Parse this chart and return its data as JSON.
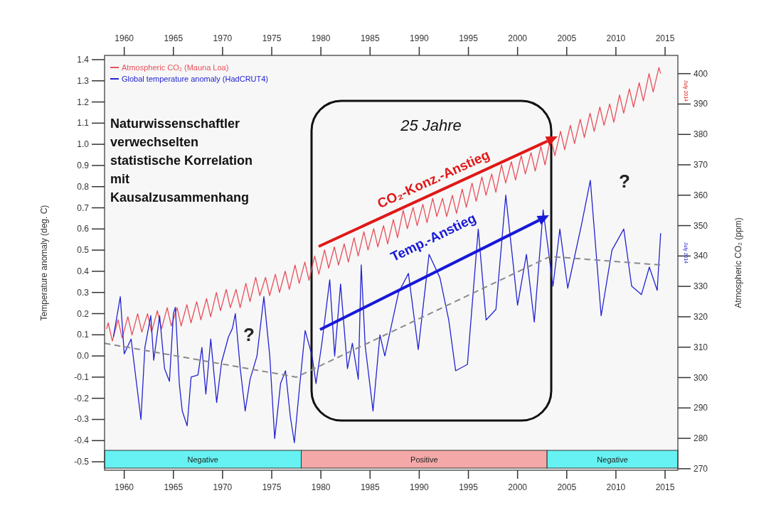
{
  "chart_data": {
    "type": "line",
    "xlim": [
      1958,
      2016.3
    ],
    "xticks": [
      1960,
      1965,
      1970,
      1975,
      1980,
      1985,
      1990,
      1995,
      2000,
      2005,
      2010,
      2015
    ],
    "x2lim": [
      1958,
      2016.3
    ],
    "x2ticks": [
      1960,
      1965,
      1970,
      1975,
      1980,
      1985,
      1990,
      1995,
      2000,
      2005,
      2010,
      2015
    ],
    "ylim": [
      -0.54,
      1.42
    ],
    "yticks": [
      -0.5,
      -0.4,
      -0.3,
      -0.2,
      -0.1,
      {
        "value": 0,
        "label": "0.0"
      },
      0.1,
      0.2,
      0.3,
      0.4,
      0.5,
      0.6,
      0.7,
      0.8,
      0.9,
      {
        "value": 1,
        "label": "1.0"
      },
      1.1,
      1.2,
      1.3,
      1.4
    ],
    "y2lim": [
      269.5,
      406
    ],
    "y2ticks": [
      270,
      280,
      290,
      300,
      310,
      320,
      330,
      340,
      350,
      360,
      370,
      380,
      390,
      400
    ],
    "ylabel": "Temperature anomaly (deg. C)",
    "y2label": "Atmospheric CO₂ (ppm)",
    "legend": "top left",
    "grid": false,
    "marker": "none",
    "series": [
      {
        "name": "Atmospheric CO₂ (Mauna Loa)",
        "color": "#e8505a",
        "axis": "y2",
        "x": [
          1958.2,
          1958.37,
          1958.79,
          1959.37,
          1959.79,
          1960.37,
          1960.79,
          1961.37,
          1961.79,
          1962.37,
          1962.79,
          1963.37,
          1963.79,
          1964.37,
          1964.79,
          1965.37,
          1965.79,
          1966.37,
          1966.79,
          1967.37,
          1967.79,
          1968.37,
          1968.79,
          1969.37,
          1969.79,
          1970.37,
          1970.79,
          1971.37,
          1971.79,
          1972.37,
          1972.79,
          1973.37,
          1973.79,
          1974.37,
          1974.79,
          1975.37,
          1975.79,
          1976.37,
          1976.79,
          1977.37,
          1977.79,
          1978.37,
          1978.79,
          1979.37,
          1979.79,
          1980.37,
          1980.79,
          1981.37,
          1981.79,
          1982.37,
          1982.79,
          1983.37,
          1983.79,
          1984.37,
          1984.79,
          1985.37,
          1985.79,
          1986.37,
          1986.79,
          1987.37,
          1987.79,
          1988.37,
          1988.79,
          1989.37,
          1989.79,
          1990.37,
          1990.79,
          1991.37,
          1991.79,
          1992.37,
          1992.79,
          1993.37,
          1993.79,
          1994.37,
          1994.79,
          1995.37,
          1995.79,
          1996.37,
          1996.79,
          1997.37,
          1997.79,
          1998.37,
          1998.79,
          1999.37,
          1999.79,
          2000.37,
          2000.79,
          2001.37,
          2001.79,
          2002.37,
          2002.79,
          2003.37,
          2003.79,
          2004.37,
          2004.79,
          2005.37,
          2005.79,
          2006.37,
          2006.79,
          2007.37,
          2007.79,
          2008.37,
          2008.79,
          2009.37,
          2009.79,
          2010.37,
          2010.79,
          2011.37,
          2011.79,
          2012.37,
          2012.79,
          2013.37,
          2013.79,
          2014.37,
          2014.55
        ],
        "values": [
          316,
          318,
          312,
          319,
          313,
          320,
          314,
          321,
          315,
          321,
          315,
          322,
          316,
          323,
          317,
          323,
          317,
          324,
          318,
          325,
          319,
          326,
          320,
          328,
          322,
          329,
          323,
          329,
          323,
          331,
          325,
          333,
          327,
          333,
          327,
          334,
          328,
          335,
          329,
          337,
          331,
          338,
          332,
          340,
          334,
          342,
          336,
          343,
          337,
          344,
          338,
          346,
          340,
          348,
          342,
          349,
          343,
          350,
          344,
          352,
          346,
          355,
          349,
          356,
          350,
          357,
          351,
          359,
          353,
          359,
          353,
          360,
          354,
          362,
          356,
          364,
          358,
          366,
          360,
          367,
          361,
          370,
          364,
          371,
          365,
          373,
          367,
          374,
          368,
          376,
          370,
          379,
          373,
          381,
          375,
          383,
          377,
          385,
          379,
          387,
          381,
          389,
          383,
          390,
          384,
          393,
          387,
          395,
          389,
          397,
          391,
          400,
          394,
          402,
          400
        ]
      },
      {
        "name": "Global temperature anomaly (HadCRUT4)",
        "color": "#2323d2",
        "x": [
          1958.9,
          1959.6,
          1960.0,
          1960.7,
          1961.7,
          1962.1,
          1962.7,
          1963.0,
          1963.6,
          1964.1,
          1964.6,
          1965.0,
          1965.2,
          1965.6,
          1965.9,
          1966.4,
          1966.8,
          1967.5,
          1967.9,
          1968.3,
          1968.8,
          1969.4,
          1969.9,
          1970.6,
          1971.0,
          1971.3,
          1971.8,
          1972.3,
          1972.8,
          1973.5,
          1974.2,
          1974.8,
          1975.3,
          1975.9,
          1976.4,
          1976.9,
          1977.3,
          1977.8,
          1978.4,
          1979.1,
          1979.5,
          1980.1,
          1980.9,
          1981.4,
          1982.0,
          1982.7,
          1983.2,
          1983.8,
          1984.1,
          1984.5,
          1985.3,
          1986.0,
          1986.5,
          1987.9,
          1988.9,
          1989.9,
          1991.0,
          1992.1,
          1993.0,
          1993.7,
          1994.9,
          1996.0,
          1996.8,
          1997.8,
          1998.8,
          2000.0,
          2000.9,
          2001.7,
          2002.6,
          2003.6,
          2004.3,
          2005.1,
          2006.5,
          2007.4,
          2008.5,
          2009.6,
          2010.8,
          2011.6,
          2012.6,
          2013.4,
          2014.2,
          2014.55
        ],
        "values": [
          0.09,
          0.28,
          0.01,
          0.08,
          -0.3,
          0.04,
          0.19,
          -0.02,
          0.19,
          -0.06,
          -0.12,
          0.2,
          0.23,
          -0.13,
          -0.26,
          -0.33,
          -0.1,
          -0.09,
          0.04,
          -0.18,
          0.08,
          -0.22,
          -0.03,
          0.09,
          0.13,
          0.2,
          -0.06,
          -0.26,
          -0.11,
          0.0,
          0.28,
          0.0,
          -0.39,
          -0.13,
          -0.07,
          -0.29,
          -0.41,
          -0.16,
          0.12,
          0.0,
          -0.13,
          0.06,
          0.36,
          0.0,
          0.34,
          -0.06,
          0.06,
          -0.11,
          0.43,
          0.05,
          -0.26,
          0.1,
          0.0,
          0.3,
          0.39,
          0.03,
          0.48,
          0.37,
          0.17,
          -0.07,
          -0.04,
          0.6,
          0.17,
          0.22,
          0.76,
          0.24,
          0.48,
          0.16,
          0.69,
          0.33,
          0.6,
          0.32,
          0.62,
          0.83,
          0.19,
          0.5,
          0.6,
          0.33,
          0.29,
          0.42,
          0.31,
          0.58
        ]
      },
      {
        "color": "#8a8a8a",
        "line_style": "dashed",
        "x": [
          1958,
          1977.5,
          2003.3,
          2014.5
        ],
        "values": [
          0.06,
          -0.1,
          0.47,
          0.43
        ]
      }
    ],
    "bands": [
      {
        "axis": "x",
        "from": 1958,
        "to": 1978,
        "label": "Negative",
        "color": "#66f2f2"
      },
      {
        "axis": "x",
        "from": 1978,
        "to": 2003,
        "label": "Positive",
        "color": "#f4a8a8"
      },
      {
        "axis": "x",
        "from": 2003,
        "to": 2016.3,
        "label": "Negative",
        "color": "#66f2f2"
      }
    ],
    "annotations": [
      "Naturwissenschaftler\nverwechselten\nstatistische Korrelation\nmit\nKausalzusammenhang",
      "25 Jahre",
      "CO₂-Konz.-Anstieg",
      "Temp.-Anstieg",
      "?",
      "?",
      "July 2014",
      "July 2014"
    ]
  }
}
